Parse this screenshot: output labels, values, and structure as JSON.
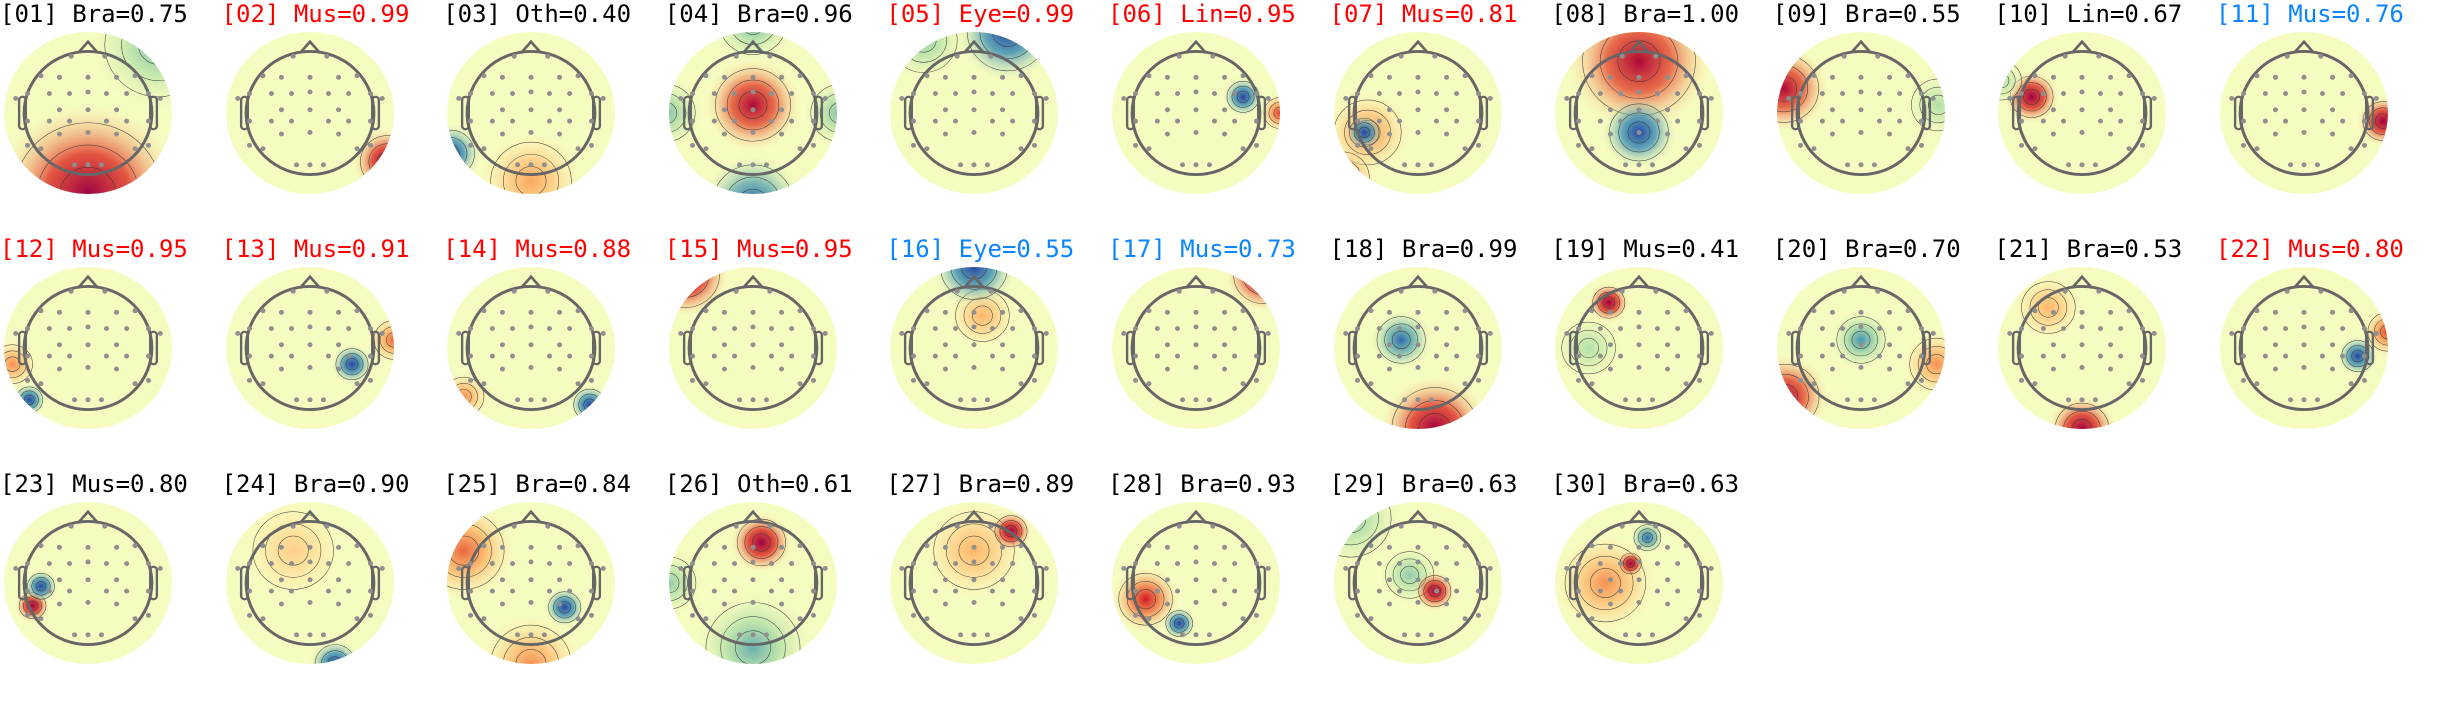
{
  "colors": {
    "normal": "#000000",
    "flagged": "#ff0000",
    "uncertain": "#0a84ff"
  },
  "colormap": "spectral (blue-green-yellow-orange-red)",
  "chart_data": {
    "type": "heatmap",
    "kind": "topographic scalp maps",
    "layout": "11 columns x 3 rows",
    "components": [
      {
        "id": "01",
        "class": "Bra",
        "prob": "0.75",
        "title": "[01] Bra=0.75",
        "color": "normal"
      },
      {
        "id": "02",
        "class": "Mus",
        "prob": "0.99",
        "title": "[02] Mus=0.99",
        "color": "flagged"
      },
      {
        "id": "03",
        "class": "Oth",
        "prob": "0.40",
        "title": "[03] Oth=0.40",
        "color": "normal"
      },
      {
        "id": "04",
        "class": "Bra",
        "prob": "0.96",
        "title": "[04] Bra=0.96",
        "color": "normal"
      },
      {
        "id": "05",
        "class": "Eye",
        "prob": "0.99",
        "title": "[05] Eye=0.99",
        "color": "flagged"
      },
      {
        "id": "06",
        "class": "Lin",
        "prob": "0.95",
        "title": "[06] Lin=0.95",
        "color": "flagged"
      },
      {
        "id": "07",
        "class": "Mus",
        "prob": "0.81",
        "title": "[07] Mus=0.81",
        "color": "flagged"
      },
      {
        "id": "08",
        "class": "Bra",
        "prob": "1.00",
        "title": "[08] Bra=1.00",
        "color": "normal"
      },
      {
        "id": "09",
        "class": "Bra",
        "prob": "0.55",
        "title": "[09] Bra=0.55",
        "color": "normal"
      },
      {
        "id": "10",
        "class": "Lin",
        "prob": "0.67",
        "title": "[10] Lin=0.67",
        "color": "normal"
      },
      {
        "id": "11",
        "class": "Mus",
        "prob": "0.76",
        "title": "[11] Mus=0.76",
        "color": "uncertain"
      },
      {
        "id": "12",
        "class": "Mus",
        "prob": "0.95",
        "title": "[12] Mus=0.95",
        "color": "flagged"
      },
      {
        "id": "13",
        "class": "Mus",
        "prob": "0.91",
        "title": "[13] Mus=0.91",
        "color": "flagged"
      },
      {
        "id": "14",
        "class": "Mus",
        "prob": "0.88",
        "title": "[14] Mus=0.88",
        "color": "flagged"
      },
      {
        "id": "15",
        "class": "Mus",
        "prob": "0.95",
        "title": "[15] Mus=0.95",
        "color": "flagged"
      },
      {
        "id": "16",
        "class": "Eye",
        "prob": "0.55",
        "title": "[16] Eye=0.55",
        "color": "uncertain"
      },
      {
        "id": "17",
        "class": "Mus",
        "prob": "0.73",
        "title": "[17] Mus=0.73",
        "color": "uncertain"
      },
      {
        "id": "18",
        "class": "Bra",
        "prob": "0.99",
        "title": "[18] Bra=0.99",
        "color": "normal"
      },
      {
        "id": "19",
        "class": "Mus",
        "prob": "0.41",
        "title": "[19] Mus=0.41",
        "color": "normal"
      },
      {
        "id": "20",
        "class": "Bra",
        "prob": "0.70",
        "title": "[20] Bra=0.70",
        "color": "normal"
      },
      {
        "id": "21",
        "class": "Bra",
        "prob": "0.53",
        "title": "[21] Bra=0.53",
        "color": "normal"
      },
      {
        "id": "22",
        "class": "Mus",
        "prob": "0.80",
        "title": "[22] Mus=0.80",
        "color": "flagged"
      },
      {
        "id": "23",
        "class": "Mus",
        "prob": "0.80",
        "title": "[23] Mus=0.80",
        "color": "normal"
      },
      {
        "id": "24",
        "class": "Bra",
        "prob": "0.90",
        "title": "[24] Bra=0.90",
        "color": "normal"
      },
      {
        "id": "25",
        "class": "Bra",
        "prob": "0.84",
        "title": "[25] Bra=0.84",
        "color": "normal"
      },
      {
        "id": "26",
        "class": "Oth",
        "prob": "0.61",
        "title": "[26] Oth=0.61",
        "color": "normal"
      },
      {
        "id": "27",
        "class": "Bra",
        "prob": "0.89",
        "title": "[27] Bra=0.89",
        "color": "normal"
      },
      {
        "id": "28",
        "class": "Bra",
        "prob": "0.93",
        "title": "[28] Bra=0.93",
        "color": "normal"
      },
      {
        "id": "29",
        "class": "Bra",
        "prob": "0.63",
        "title": "[29] Bra=0.63",
        "color": "normal"
      },
      {
        "id": "30",
        "class": "Bra",
        "prob": "0.63",
        "title": "[30] Bra=0.63",
        "color": "normal"
      }
    ]
  }
}
